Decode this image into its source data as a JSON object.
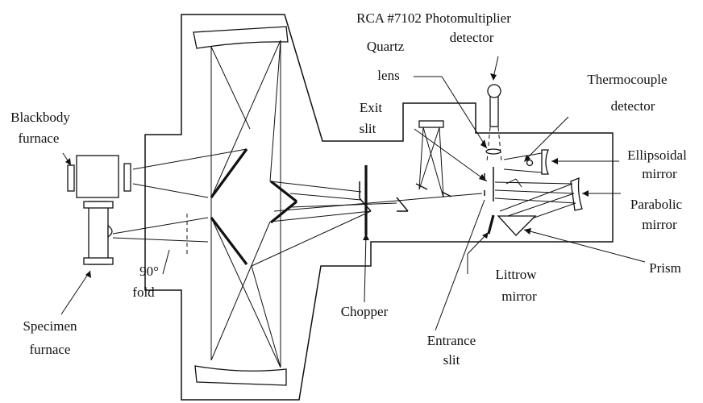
{
  "labels": {
    "photomultiplier_line1": "RCA #7102 Photomultiplier",
    "photomultiplier_line2": "detector",
    "quartz_line1": "Quartz",
    "quartz_line2": "lens",
    "exit_line1": "Exit",
    "exit_line2": "slit",
    "thermocouple_line1": "Thermocouple",
    "thermocouple_line2": "detector",
    "blackbody_line1": "Blackbody",
    "blackbody_line2": "furnace",
    "ellipsoidal_line1": "Ellipsoidal",
    "ellipsoidal_line2": "mirror",
    "parabolic_line1": "Parabolic",
    "parabolic_line2": "mirror",
    "prism": "Prism",
    "fold_line1": "90°",
    "fold_line2": "fold",
    "chopper": "Chopper",
    "littrow_line1": "Littrow",
    "littrow_line2": "mirror",
    "specimen_line1": "Specimen",
    "specimen_line2": "furnace",
    "entrance_line1": "Entrance",
    "entrance_line2": "slit"
  }
}
